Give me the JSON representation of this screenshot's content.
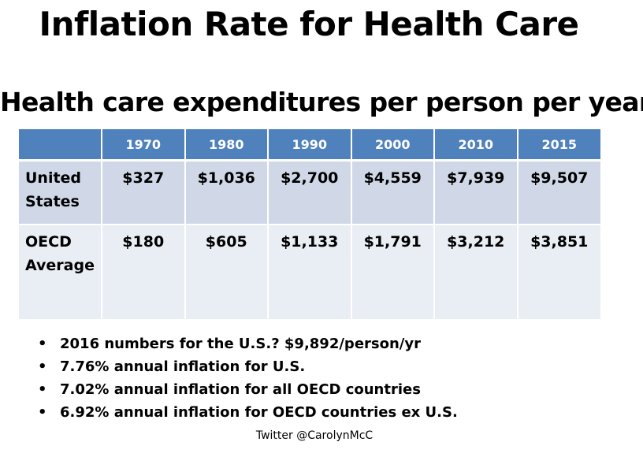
{
  "title": "Inflation Rate for Health Care",
  "subtitle": "Health care expenditures per person per year",
  "table": {
    "header": [
      "",
      "1970",
      "1980",
      "1990",
      "2000",
      "2010",
      "2015"
    ],
    "rows": [
      {
        "label_line1": "United",
        "label_line2": "States",
        "values": [
          "$327",
          "$1,036",
          "$2,700",
          "$4,559",
          "$7,939",
          "$9,507"
        ]
      },
      {
        "label_line1": "OECD",
        "label_line2": "Average",
        "values": [
          "$180",
          "$605",
          "$1,133",
          "$1,791",
          "$3,212",
          "$3,851"
        ]
      }
    ]
  },
  "bullets": [
    "2016 numbers for the U.S.? $9,892/person/yr",
    "7.76% annual inflation for U.S.",
    "7.02% annual inflation for all OECD countries",
    "6.92% annual inflation for OECD countries ex U.S."
  ],
  "bullet_symbol": "•",
  "footer": "Twitter @CarolynMcC",
  "colors": {
    "header_bg": "#4f81bd",
    "row1_bg": "#d0d8e8",
    "row2_bg": "#e9edf4"
  }
}
